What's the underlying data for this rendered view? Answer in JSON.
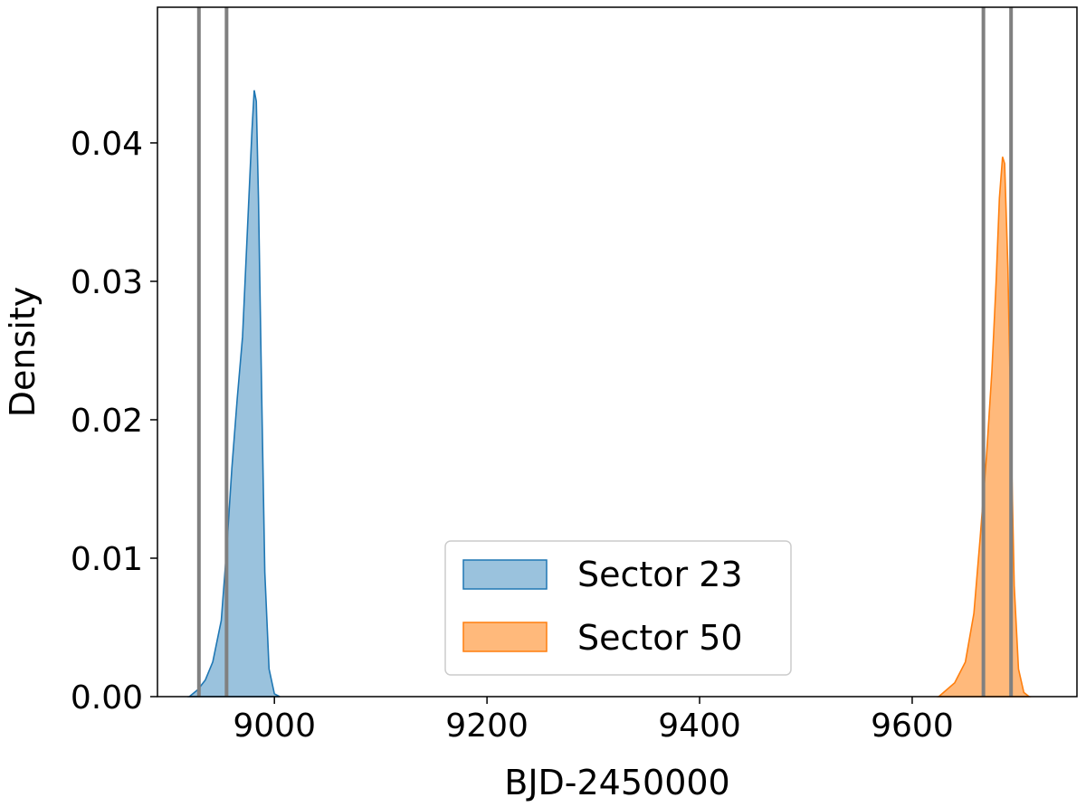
{
  "chart_data": {
    "type": "area",
    "title": "",
    "xlabel": "BJD-2450000",
    "ylabel": "Density",
    "xlim": [
      8890,
      9755
    ],
    "ylim": [
      0,
      0.0498
    ],
    "x_ticks": [
      9000,
      9200,
      9400,
      9600
    ],
    "y_ticks": [
      0.0,
      0.01,
      0.02,
      0.03,
      0.04
    ],
    "x_tick_labels": [
      "9000",
      "9200",
      "9400",
      "9600"
    ],
    "y_tick_labels": [
      "0.00",
      "0.01",
      "0.02",
      "0.03",
      "0.04"
    ],
    "grid": false,
    "legend_position": "lower center",
    "vertical_lines": {
      "color": "#808080",
      "x": [
        8929,
        8955,
        9667,
        9693
      ]
    },
    "series": [
      {
        "name": "Sector 23",
        "color": "#1f77b4",
        "fill_opacity": 0.45,
        "x": [
          8920,
          8928,
          8935,
          8942,
          8950,
          8955,
          8960,
          8965,
          8970,
          8973,
          8976,
          8979,
          8981,
          8983,
          8985,
          8988,
          8991,
          8995,
          9000,
          9005
        ],
        "y": [
          0.0,
          0.0005,
          0.0012,
          0.0025,
          0.0055,
          0.0105,
          0.0165,
          0.0215,
          0.026,
          0.031,
          0.036,
          0.041,
          0.0438,
          0.043,
          0.036,
          0.022,
          0.009,
          0.002,
          0.0002,
          0.0
        ]
      },
      {
        "name": "Sector 50",
        "color": "#ff7f0e",
        "fill_opacity": 0.55,
        "x": [
          9625,
          9640,
          9650,
          9658,
          9664,
          9670,
          9675,
          9679,
          9682,
          9685,
          9687,
          9690,
          9693,
          9696,
          9700,
          9705,
          9710
        ],
        "y": [
          0.0,
          0.001,
          0.0025,
          0.006,
          0.0115,
          0.0175,
          0.0235,
          0.03,
          0.036,
          0.039,
          0.0385,
          0.031,
          0.019,
          0.008,
          0.002,
          0.0003,
          0.0
        ]
      }
    ]
  }
}
